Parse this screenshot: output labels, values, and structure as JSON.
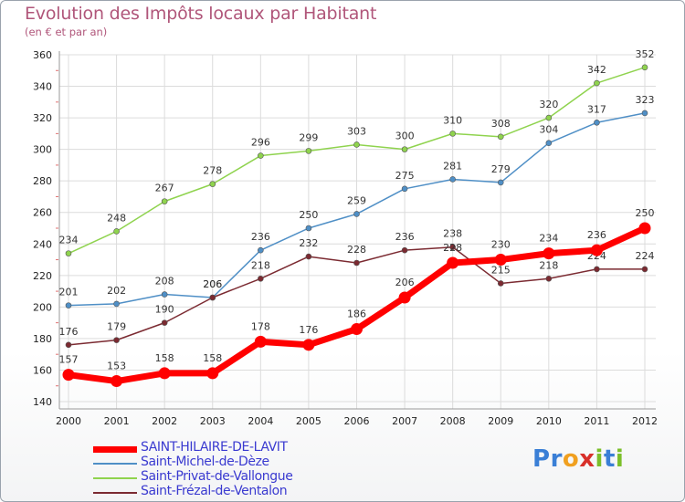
{
  "header": {
    "title": "Evolution des Impôts locaux par Habitant",
    "subtitle": "(en € et par an)"
  },
  "logo": {
    "text": "Proxiti",
    "letters": [
      "P",
      "r",
      "o",
      "x",
      "i",
      "t",
      "i"
    ],
    "colors": [
      "#3a7fd6",
      "#3a7fd6",
      "#f0a020",
      "#d8302a",
      "#7bbf2a",
      "#3a7fd6",
      "#7bbf2a"
    ]
  },
  "chart_data": {
    "type": "line",
    "title": "Evolution des Impôts locaux par Habitant",
    "subtitle": "(en € et par an)",
    "xlabel": "",
    "ylabel": "",
    "x": [
      "2000",
      "2001",
      "2002",
      "2003",
      "2004",
      "2005",
      "2006",
      "2007",
      "2008",
      "2009",
      "2010",
      "2011",
      "2012"
    ],
    "ylim": [
      140,
      360
    ],
    "yticks": [
      140,
      160,
      180,
      200,
      220,
      240,
      260,
      280,
      300,
      320,
      340,
      360
    ],
    "grid": true,
    "legend_position": "bottom-left",
    "series": [
      {
        "name": "SAINT-HILAIRE-DE-LAVIT",
        "color": "#ff0000",
        "emphasis": true,
        "values": [
          157,
          153,
          158,
          158,
          178,
          176,
          186,
          206,
          228,
          230,
          234,
          236,
          250
        ]
      },
      {
        "name": "Saint-Michel-de-Dèze",
        "color": "#4f8fc6",
        "emphasis": false,
        "values": [
          201,
          202,
          208,
          206,
          236,
          250,
          259,
          275,
          281,
          279,
          304,
          317,
          323
        ]
      },
      {
        "name": "Saint-Privat-de-Vallongue",
        "color": "#8fd34e",
        "emphasis": false,
        "values": [
          234,
          248,
          267,
          278,
          296,
          299,
          303,
          300,
          310,
          308,
          320,
          342,
          352
        ]
      },
      {
        "name": "Saint-Frézal-de-Ventalon",
        "color": "#7b2a31",
        "emphasis": false,
        "values": [
          176,
          179,
          190,
          206,
          218,
          232,
          228,
          236,
          238,
          215,
          218,
          224,
          224
        ]
      }
    ]
  }
}
